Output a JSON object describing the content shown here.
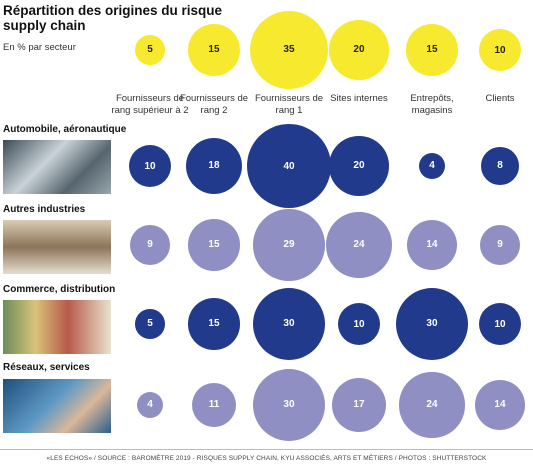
{
  "chart_data": {
    "type": "bubble",
    "title": "Répartition des origines du risque supply chain",
    "subtitle": "En % par secteur",
    "categories": [
      "Fournisseurs de rang supérieur à 2",
      "Fournisseurs de rang 2",
      "Fournisseurs de rang 1",
      "Sites internes",
      "Entrepôts, magasins",
      "Clients"
    ],
    "totals": {
      "color": "#f7ea2e",
      "values": [
        5,
        15,
        35,
        20,
        15,
        10
      ]
    },
    "series": [
      {
        "name": "Automobile, aéronautique",
        "color": "#223a8c",
        "values": [
          10,
          18,
          40,
          20,
          4,
          8
        ]
      },
      {
        "name": "Autres industries",
        "color": "#8f8fc4",
        "values": [
          9,
          15,
          29,
          24,
          14,
          9
        ]
      },
      {
        "name": "Commerce, distribution",
        "color": "#223a8c",
        "values": [
          5,
          15,
          30,
          10,
          30,
          10
        ]
      },
      {
        "name": "Réseaux, services",
        "color": "#8f8fc4",
        "values": [
          4,
          11,
          30,
          17,
          24,
          14
        ]
      }
    ],
    "source": "«LES ECHOS» / SOURCE : BAROMÈTRE 2019 - RISQUES SUPPLY CHAIN, KYU ASSOCIÉS, ARTS ET MÉTIERS / PHOTOS : SHUTTERSTOCK"
  }
}
